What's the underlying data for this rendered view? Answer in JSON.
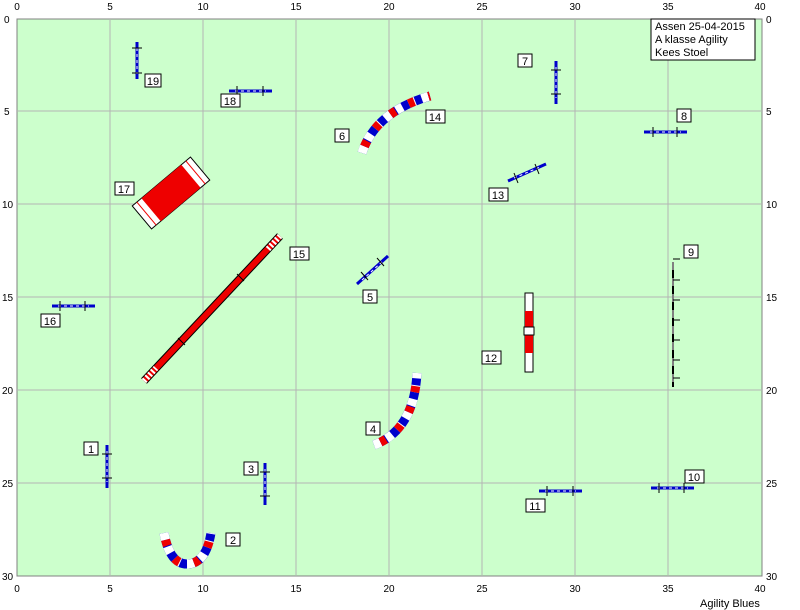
{
  "info": {
    "line1": "Assen  25-04-2015",
    "line2": "A klasse Agility",
    "line3": "Kees Stoel"
  },
  "footer": "Agility Blues",
  "axes": {
    "x_ticks": [
      "0",
      "5",
      "10",
      "15",
      "20",
      "25",
      "30",
      "35",
      "40"
    ],
    "y_ticks": [
      "0",
      "5",
      "10",
      "15",
      "20",
      "25",
      "30"
    ]
  },
  "colors": {
    "field": "#ccffcc",
    "grid": "#b4b4b4",
    "blue": "#0000cc",
    "red": "#ee0000",
    "white": "#ffffff"
  },
  "obstacles": [
    {
      "label": "1",
      "kind": "jump"
    },
    {
      "label": "2",
      "kind": "tunnel"
    },
    {
      "label": "3",
      "kind": "jump"
    },
    {
      "label": "4",
      "kind": "tunnel"
    },
    {
      "label": "5",
      "kind": "jump"
    },
    {
      "label": "6",
      "kind": "tunnel"
    },
    {
      "label": "7",
      "kind": "jump"
    },
    {
      "label": "8",
      "kind": "jump"
    },
    {
      "label": "9",
      "kind": "weave-poles"
    },
    {
      "label": "10",
      "kind": "jump"
    },
    {
      "label": "11",
      "kind": "jump"
    },
    {
      "label": "12",
      "kind": "tire"
    },
    {
      "label": "13",
      "kind": "jump"
    },
    {
      "label": "14",
      "kind": "tunnel"
    },
    {
      "label": "15",
      "kind": "dog-walk"
    },
    {
      "label": "16",
      "kind": "jump"
    },
    {
      "label": "17",
      "kind": "table"
    },
    {
      "label": "18",
      "kind": "jump"
    },
    {
      "label": "19",
      "kind": "jump"
    }
  ]
}
